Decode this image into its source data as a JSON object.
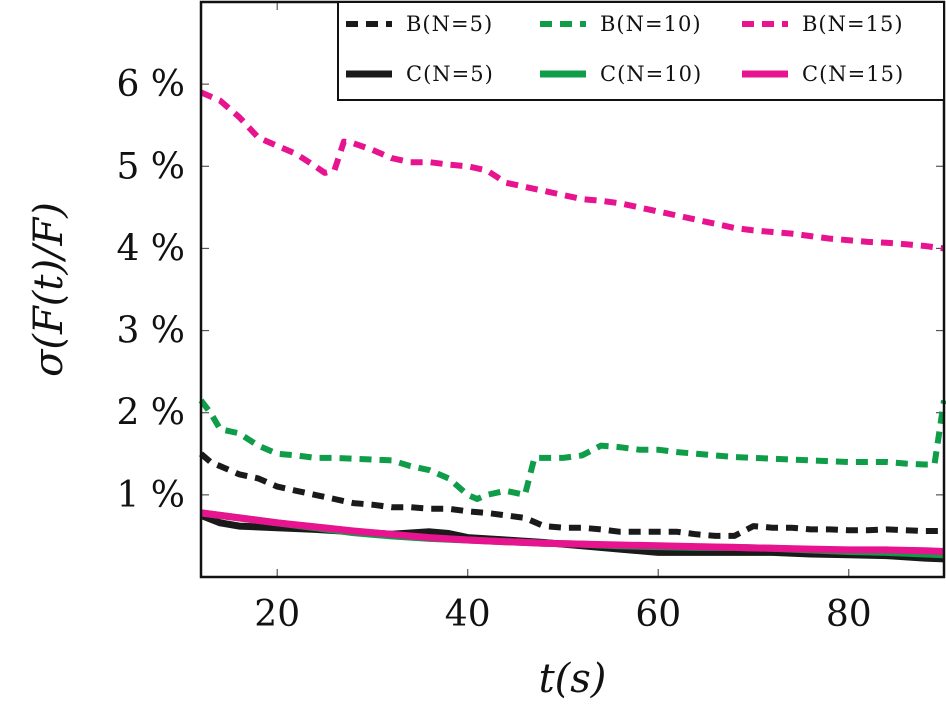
{
  "chart_data": {
    "type": "line",
    "title": "",
    "xlabel": "t(s)",
    "ylabel": "σ(F(t)/F)",
    "xlim": [
      12,
      90
    ],
    "ylim": [
      0,
      7
    ],
    "x_ticks": [
      20,
      40,
      60,
      80
    ],
    "x_tick_labels": [
      "20",
      "40",
      "60",
      "80"
    ],
    "y_ticks": [
      1,
      2,
      3,
      4,
      5,
      6
    ],
    "y_tick_labels": [
      "1 %",
      "2 %",
      "3 %",
      "4 %",
      "5 %",
      "6 %"
    ],
    "grid": false,
    "legend_position": "top-right",
    "legend_columns": 3,
    "series": [
      {
        "name": "B(N=5)",
        "color": "#1a1a1a",
        "dash": "dashed",
        "x": [
          12,
          13,
          15,
          16,
          18,
          20,
          22,
          24,
          26,
          28,
          30,
          32,
          34,
          36,
          38,
          40,
          42,
          44,
          46,
          48,
          50,
          52,
          54,
          56,
          58,
          60,
          62,
          64,
          66,
          68,
          70,
          72,
          74,
          76,
          78,
          80,
          82,
          84,
          86,
          88,
          90
        ],
        "y": [
          1.5,
          1.4,
          1.3,
          1.25,
          1.2,
          1.1,
          1.05,
          1.0,
          0.95,
          0.9,
          0.88,
          0.85,
          0.85,
          0.83,
          0.83,
          0.8,
          0.78,
          0.75,
          0.72,
          0.62,
          0.6,
          0.6,
          0.58,
          0.55,
          0.55,
          0.55,
          0.55,
          0.52,
          0.5,
          0.5,
          0.62,
          0.6,
          0.6,
          0.58,
          0.58,
          0.57,
          0.57,
          0.58,
          0.57,
          0.56,
          0.56
        ]
      },
      {
        "name": "B(N=10)",
        "color": "#0f9d4a",
        "dash": "dashed",
        "x": [
          12,
          13,
          14,
          16,
          18,
          20,
          22,
          24,
          26,
          28,
          30,
          32,
          34,
          36,
          38,
          40,
          41,
          42,
          44,
          46,
          47,
          48,
          50,
          52,
          54,
          56,
          58,
          60,
          62,
          64,
          66,
          68,
          70,
          72,
          74,
          76,
          78,
          80,
          82,
          84,
          86,
          88,
          89,
          90
        ],
        "y": [
          2.15,
          2.0,
          1.8,
          1.75,
          1.6,
          1.5,
          1.48,
          1.45,
          1.45,
          1.44,
          1.43,
          1.42,
          1.35,
          1.3,
          1.2,
          1.0,
          0.95,
          1.0,
          1.05,
          1.0,
          1.45,
          1.45,
          1.45,
          1.48,
          1.6,
          1.58,
          1.55,
          1.55,
          1.52,
          1.5,
          1.48,
          1.46,
          1.45,
          1.44,
          1.43,
          1.42,
          1.41,
          1.4,
          1.4,
          1.4,
          1.38,
          1.37,
          1.37,
          2.15
        ]
      },
      {
        "name": "B(N=15)",
        "color": "#e8138f",
        "dash": "dashed",
        "x": [
          12,
          13,
          14,
          16,
          18,
          20,
          22,
          24,
          25,
          26,
          27,
          28,
          30,
          32,
          34,
          36,
          38,
          40,
          42,
          44,
          46,
          48,
          50,
          52,
          54,
          56,
          58,
          60,
          62,
          64,
          66,
          68,
          70,
          72,
          74,
          76,
          78,
          80,
          82,
          84,
          86,
          88,
          90
        ],
        "y": [
          5.9,
          5.85,
          5.8,
          5.6,
          5.35,
          5.25,
          5.15,
          5.0,
          4.92,
          4.95,
          5.3,
          5.28,
          5.2,
          5.1,
          5.05,
          5.05,
          5.02,
          5.0,
          4.95,
          4.8,
          4.75,
          4.7,
          4.65,
          4.6,
          4.58,
          4.55,
          4.5,
          4.45,
          4.4,
          4.35,
          4.3,
          4.25,
          4.22,
          4.2,
          4.18,
          4.15,
          4.12,
          4.1,
          4.08,
          4.07,
          4.05,
          4.03,
          4.0
        ]
      },
      {
        "name": "C(N=5)",
        "color": "#1a1a1a",
        "dash": "solid",
        "x": [
          12,
          14,
          16,
          20,
          24,
          28,
          32,
          36,
          38,
          40,
          44,
          48,
          52,
          56,
          60,
          64,
          68,
          72,
          76,
          80,
          84,
          88,
          90
        ],
        "y": [
          0.75,
          0.66,
          0.62,
          0.6,
          0.58,
          0.55,
          0.52,
          0.55,
          0.53,
          0.48,
          0.45,
          0.42,
          0.38,
          0.34,
          0.3,
          0.3,
          0.3,
          0.3,
          0.28,
          0.27,
          0.26,
          0.23,
          0.22
        ]
      },
      {
        "name": "C(N=10)",
        "color": "#0f9d4a",
        "dash": "solid",
        "x": [
          12,
          16,
          20,
          24,
          28,
          32,
          36,
          40,
          44,
          48,
          52,
          56,
          60,
          64,
          68,
          72,
          76,
          80,
          84,
          88,
          90
        ],
        "y": [
          0.78,
          0.72,
          0.66,
          0.6,
          0.54,
          0.5,
          0.47,
          0.45,
          0.43,
          0.41,
          0.4,
          0.38,
          0.37,
          0.36,
          0.36,
          0.35,
          0.33,
          0.31,
          0.3,
          0.28,
          0.27
        ]
      },
      {
        "name": "C(N=15)",
        "color": "#e8138f",
        "dash": "solid",
        "x": [
          12,
          16,
          20,
          24,
          28,
          32,
          36,
          40,
          44,
          48,
          52,
          56,
          60,
          64,
          68,
          72,
          76,
          80,
          84,
          88,
          90
        ],
        "y": [
          0.78,
          0.72,
          0.66,
          0.61,
          0.56,
          0.52,
          0.48,
          0.45,
          0.43,
          0.41,
          0.4,
          0.39,
          0.38,
          0.37,
          0.36,
          0.35,
          0.34,
          0.33,
          0.33,
          0.32,
          0.31
        ]
      }
    ]
  }
}
